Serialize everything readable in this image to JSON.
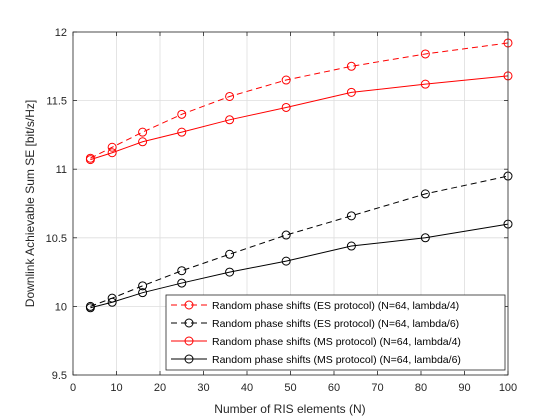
{
  "chart_data": {
    "type": "line",
    "title": "",
    "xlabel": "Number of RIS elements (N)",
    "ylabel": "Downlink Achievable Sum SE [bit/s/Hz]",
    "xlim": [
      0,
      100
    ],
    "ylim": [
      9.5,
      12
    ],
    "xticks": [
      0,
      10,
      20,
      30,
      40,
      50,
      60,
      70,
      80,
      90,
      100
    ],
    "yticks": [
      9.5,
      10,
      10.5,
      11,
      11.5,
      12
    ],
    "ytick_labels": [
      "9.5",
      "10",
      "10.5",
      "11",
      "11.5",
      "12"
    ],
    "grid": true,
    "legend_position": "bottom-right",
    "x": [
      4,
      9,
      16,
      25,
      36,
      49,
      64,
      81,
      100
    ],
    "series": [
      {
        "name": "Random phase shifts (ES protocol) (N=64, lambda/4)",
        "color": "#ff0000",
        "dash": "dashed",
        "marker": "circle",
        "values": [
          11.08,
          11.16,
          11.27,
          11.4,
          11.53,
          11.65,
          11.75,
          11.84,
          11.92
        ]
      },
      {
        "name": "Random phase shifts (ES protocol) (N=64, lambda/6)",
        "color": "#000000",
        "dash": "dashed",
        "marker": "circle",
        "values": [
          10.0,
          10.06,
          10.15,
          10.26,
          10.38,
          10.52,
          10.66,
          10.82,
          10.95
        ]
      },
      {
        "name": "Random phase shifts (MS protocol) (N=64, lambda/4)",
        "color": "#ff0000",
        "dash": "solid",
        "marker": "circle",
        "values": [
          11.07,
          11.12,
          11.2,
          11.27,
          11.36,
          11.45,
          11.56,
          11.62,
          11.68
        ]
      },
      {
        "name": "Random phase shifts (MS protocol) (N=64, lambda/6)",
        "color": "#000000",
        "dash": "solid",
        "marker": "circle",
        "values": [
          9.99,
          10.03,
          10.1,
          10.17,
          10.25,
          10.33,
          10.44,
          10.5,
          10.6
        ]
      }
    ]
  }
}
